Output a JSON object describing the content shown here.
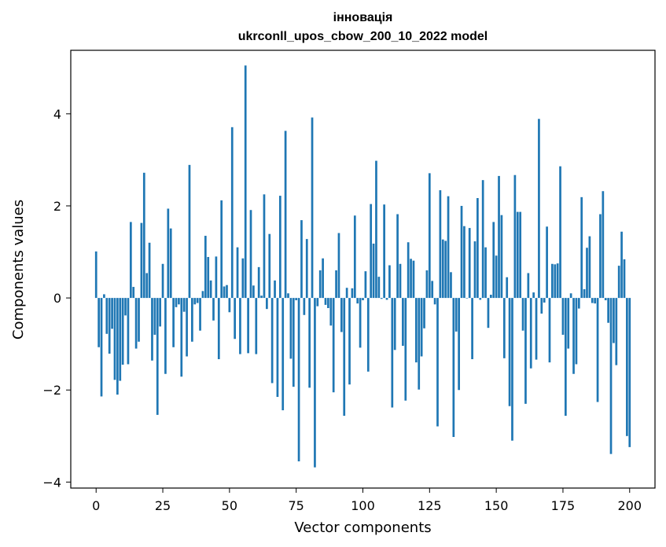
{
  "chart_data": {
    "type": "bar",
    "title_line1": "інновація",
    "title_line2": "ukrconll_upos_cbow_200_10_2022 model",
    "xlabel": "Vector components",
    "ylabel": "Components values",
    "xlim": [
      -9.5,
      209.5
    ],
    "ylim": [
      -4.13,
      5.38
    ],
    "xticks": [
      0,
      25,
      50,
      75,
      100,
      125,
      150,
      175,
      200
    ],
    "yticks": [
      -4,
      -2,
      0,
      2,
      4
    ],
    "xtick_labels": [
      "0",
      "25",
      "50",
      "75",
      "100",
      "125",
      "150",
      "175",
      "200"
    ],
    "ytick_labels": [
      "−4",
      "−2",
      "0",
      "2",
      "4"
    ],
    "bar_color": "#1f77b4",
    "grid": false,
    "values": [
      1.01,
      -1.07,
      -2.14,
      0.08,
      -0.78,
      -1.21,
      -0.67,
      -1.78,
      -2.1,
      -1.8,
      -1.45,
      -0.38,
      -1.44,
      1.65,
      0.24,
      -1.1,
      -0.95,
      1.63,
      2.72,
      0.54,
      1.2,
      -1.36,
      -0.8,
      -2.54,
      -0.62,
      0.74,
      -1.65,
      1.94,
      1.51,
      -1.07,
      -0.2,
      -0.14,
      -1.71,
      -0.3,
      -1.27,
      2.89,
      -0.95,
      -0.14,
      -0.11,
      -0.71,
      0.15,
      1.35,
      0.89,
      0.38,
      -0.49,
      0.9,
      -1.33,
      2.12,
      0.25,
      0.28,
      -0.31,
      3.71,
      -0.89,
      1.1,
      -1.22,
      0.86,
      5.05,
      -1.2,
      1.91,
      0.27,
      -1.22,
      0.67,
      0.05,
      2.25,
      -0.24,
      1.39,
      -1.85,
      0.38,
      -2.15,
      2.22,
      -2.44,
      3.63,
      0.1,
      -1.32,
      -1.93,
      -0.05,
      -3.55,
      1.69,
      -0.37,
      1.28,
      -1.95,
      3.92,
      -3.68,
      -0.18,
      0.6,
      0.86,
      -0.15,
      -0.22,
      -0.6,
      -2.05,
      0.6,
      1.41,
      -0.74,
      -2.56,
      0.22,
      -1.88,
      0.21,
      1.79,
      -0.12,
      -1.08,
      -0.05,
      0.58,
      -1.6,
      2.04,
      1.18,
      2.98,
      0.46,
      -0.02,
      2.03,
      -0.04,
      0.71,
      -2.38,
      -1.13,
      1.82,
      0.74,
      -1.04,
      -2.23,
      1.21,
      0.85,
      0.81,
      -1.4,
      -1.99,
      -1.27,
      -0.66,
      0.6,
      2.71,
      0.37,
      -0.14,
      -2.79,
      2.34,
      1.27,
      1.24,
      2.21,
      0.56,
      -3.02,
      -0.73,
      -2.0,
      2.0,
      1.56,
      -0.01,
      1.52,
      -1.33,
      1.23,
      2.17,
      -0.04,
      2.56,
      1.1,
      -0.65,
      0.07,
      1.65,
      0.92,
      2.65,
      1.8,
      -1.31,
      0.45,
      -2.35,
      -3.1,
      2.67,
      1.87,
      1.87,
      -0.71,
      -2.3,
      0.54,
      -1.53,
      0.12,
      -1.34,
      3.89,
      -0.34,
      -0.1,
      1.55,
      -1.4,
      0.74,
      0.73,
      0.75,
      2.86,
      -0.8,
      -2.56,
      -1.1,
      0.1,
      -1.65,
      -1.44,
      -0.23,
      2.19,
      0.19,
      1.09,
      1.34,
      -0.11,
      -0.12,
      -2.26,
      1.82,
      2.32,
      -0.05,
      -0.54,
      -3.39,
      -0.98,
      -1.46,
      0.7,
      1.44,
      0.84,
      -3.0,
      -3.24
    ]
  }
}
